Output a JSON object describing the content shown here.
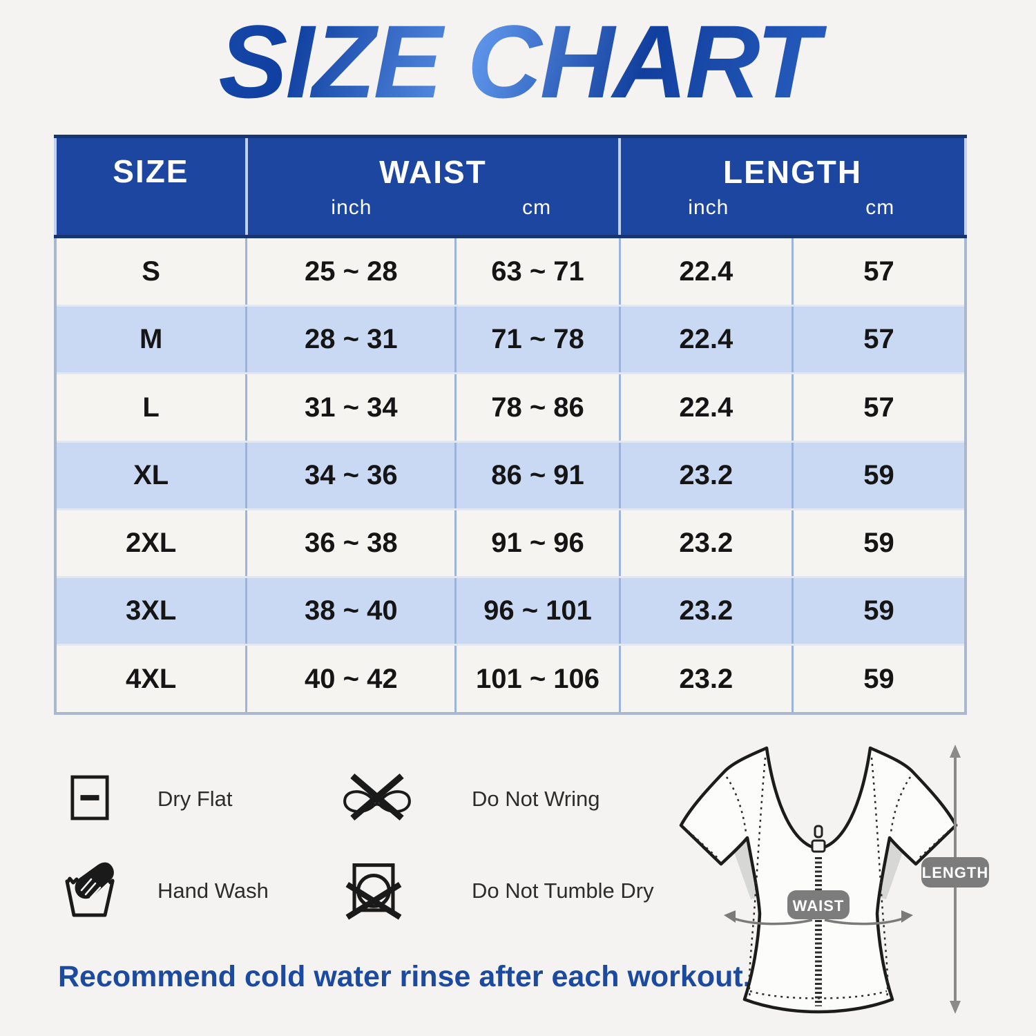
{
  "title": "SIZE CHART",
  "table": {
    "headers": {
      "size": "SIZE",
      "waist": "WAIST",
      "length": "LENGTH",
      "inch": "inch",
      "cm": "cm"
    },
    "rows": [
      {
        "size": "S",
        "waist_in": "25 ~ 28",
        "waist_cm": "63 ~ 71",
        "len_in": "22.4",
        "len_cm": "57"
      },
      {
        "size": "M",
        "waist_in": "28 ~ 31",
        "waist_cm": "71 ~ 78",
        "len_in": "22.4",
        "len_cm": "57"
      },
      {
        "size": "L",
        "waist_in": "31 ~ 34",
        "waist_cm": "78 ~ 86",
        "len_in": "22.4",
        "len_cm": "57"
      },
      {
        "size": "XL",
        "waist_in": "34 ~ 36",
        "waist_cm": "86 ~ 91",
        "len_in": "23.2",
        "len_cm": "59"
      },
      {
        "size": "2XL",
        "waist_in": "36 ~ 38",
        "waist_cm": "91 ~ 96",
        "len_in": "23.2",
        "len_cm": "59"
      },
      {
        "size": "3XL",
        "waist_in": "38 ~ 40",
        "waist_cm": "96 ~ 101",
        "len_in": "23.2",
        "len_cm": "59"
      },
      {
        "size": "4XL",
        "waist_in": "40 ~ 42",
        "waist_cm": "101 ~ 106",
        "len_in": "23.2",
        "len_cm": "59"
      }
    ]
  },
  "care_items": [
    {
      "icon": "dry-flat-icon",
      "label": "Dry Flat"
    },
    {
      "icon": "do-not-wring-icon",
      "label": "Do Not Wring"
    },
    {
      "icon": "hand-wash-icon",
      "label": "Hand Wash"
    },
    {
      "icon": "do-not-tumble-dry-icon",
      "label": "Do Not Tumble Dry"
    }
  ],
  "diagram": {
    "waist_badge": "WAIST",
    "length_badge": "LENGTH"
  },
  "note": "Recommend cold water rinse after each workout.",
  "colors": {
    "header_blue": "#1c46a0",
    "row_blue": "#c9d9f4",
    "row_white": "#f5f4f1",
    "grid_line": "#9db4da",
    "note_blue": "#1b4a9e",
    "badge_gray": "#7c7c7c"
  }
}
